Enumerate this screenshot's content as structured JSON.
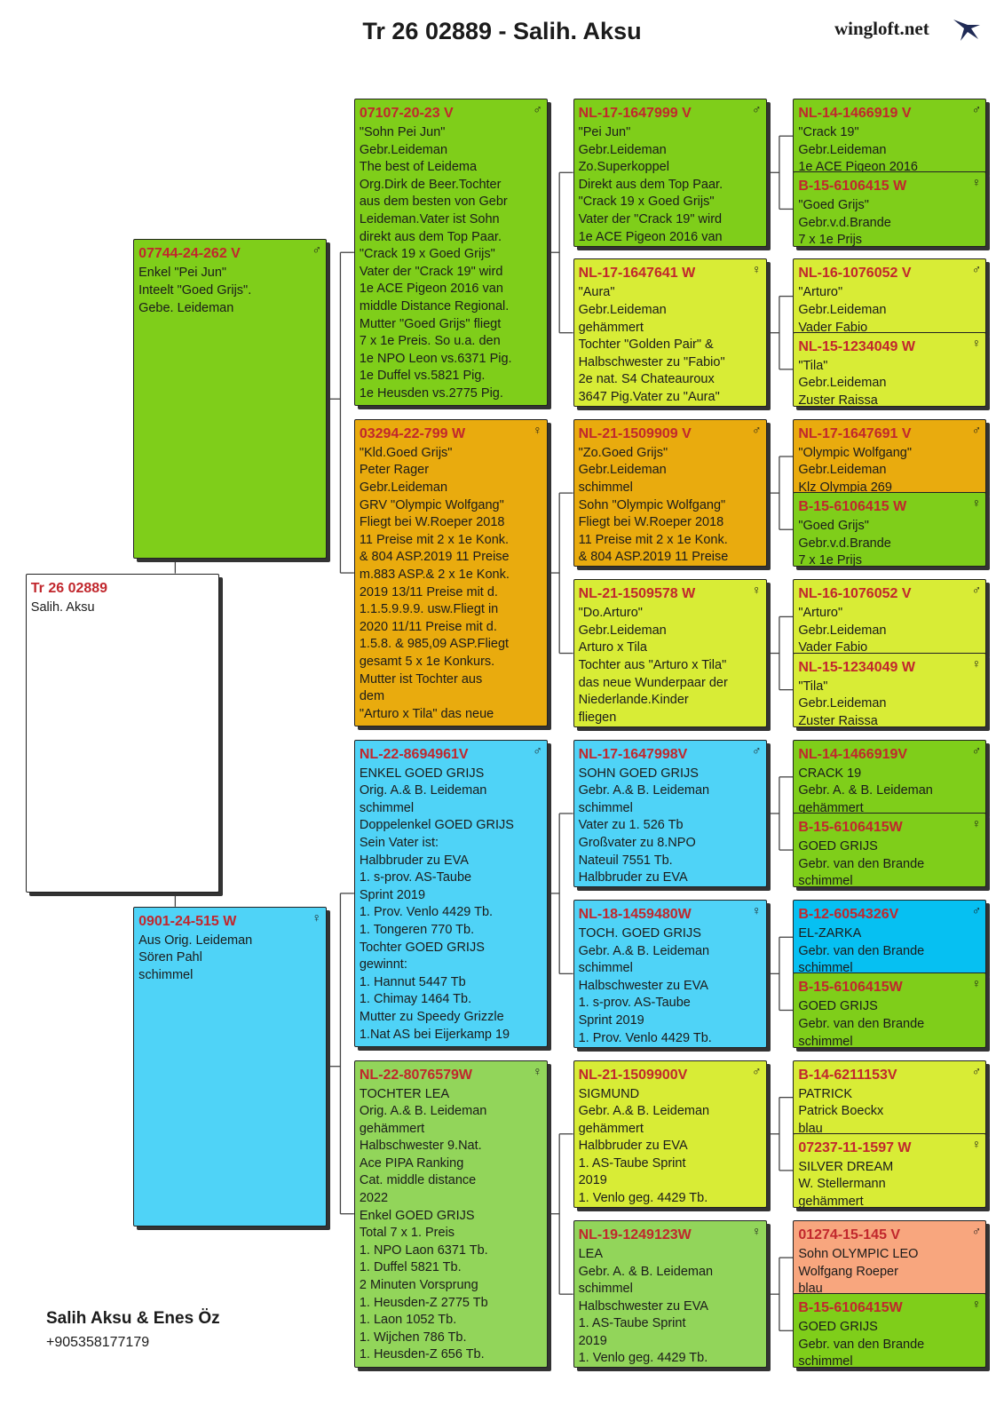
{
  "header": {
    "title": "Tr 26 02889 - Salih. Aksu",
    "brand": "wingloft.net"
  },
  "pedigree": {
    "nodes": [
      {
        "id": "Tr 26 02889",
        "sex": "",
        "lines": [
          "Salih. Aksu"
        ],
        "color": "#ffffff"
      },
      {
        "id": "07744-24-262 V",
        "sex": "♂",
        "lines": [
          "Enkel \"Pei Jun\"",
          "Inteelt \"Goed Grijs\".",
          "Gebe. Leideman"
        ],
        "color": "#7fce1a"
      },
      {
        "id": "0901-24-515 W",
        "sex": "♀",
        "lines": [
          "Aus Orig. Leideman",
          "Sören Pahl",
          "schimmel"
        ],
        "color": "#4fd3f7"
      },
      {
        "id": "07107-20-23 V",
        "sex": "♂",
        "lines": [
          "\"Sohn Pei Jun\"",
          "Gebr.Leideman",
          "The best of Leidema",
          "Org.Dirk de Beer.Tochter",
          "aus dem besten von Gebr",
          "Leideman.Vater ist Sohn",
          "direkt aus dem Top Paar.",
          "\"Crack 19 x Goed Grijs\"",
          "Vater der \"Crack 19\" wird",
          "1e ACE Pigeon 2016 van",
          "middle Distance Regional.",
          "Mutter \"Goed Grijs\" fliegt",
          "7 x 1e Preis. So u.a. den",
          "1e NPO Leon vs.6371 Pig.",
          "1e Duffel vs.5821 Pig.",
          "1e Heusden vs.2775 Pig."
        ],
        "color": "#7fce1a"
      },
      {
        "id": "03294-22-799 W",
        "sex": "♀",
        "lines": [
          "\"Kld.Goed Grijs\"",
          "Peter Rager",
          "Gebr.Leideman",
          "GRV \"Olympic Wolfgang\"",
          "Fliegt bei W.Roeper 2018",
          "11 Preise mit 2 x 1e Konk.",
          "& 804 ASP.2019 11 Preise",
          "m.883 ASP.& 2 x 1e Konk.",
          "2019 13/11 Preise mit d.",
          "1.1.5.9.9.9. usw.Fliegt in",
          "2020 11/11 Preise mit d.",
          "1.5.8. & 985,09 ASP.Fliegt",
          "gesamt 5 x 1e Konkurs.",
          "Mutter ist Tochter aus",
          "dem",
          "\"Arturo x Tila\" das neue"
        ],
        "color": "#e9ab0e"
      },
      {
        "id": "NL-22-8694961V",
        "sex": "♂",
        "lines": [
          "ENKEL GOED GRIJS",
          "Orig. A.& B. Leideman",
          "schimmel",
          "Doppelenkel GOED GRIJS",
          "Sein Vater ist:",
          "Halbbruder zu EVA",
          "1. s-prov. AS-Taube",
          "Sprint 2019",
          "1. Prov. Venlo 4429 Tb.",
          "1. Tongeren 770 Tb.",
          "Tochter GOED GRIJS",
          "gewinnt:",
          "1. Hannut 5447 Tb",
          "1. Chimay 1464 Tb.",
          "Mutter zu Speedy Grizzle",
          "1.Nat AS bei Eijerkamp 19"
        ],
        "color": "#4fd3f7"
      },
      {
        "id": "NL-22-8076579W",
        "sex": "♀",
        "lines": [
          "TOCHTER LEA",
          "Orig. A.& B. Leideman",
          "gehämmert",
          "Halbschwester 9.Nat.",
          "Ace PIPA Ranking",
          "Cat. middle distance",
          "2022",
          "Enkel GOED GRIJS",
          "Total 7 x 1. Preis",
          "1. NPO Laon 6371 Tb.",
          "1. Duffel 5821 Tb.",
          "2 Minuten Vorsprung",
          "1. Heusden-Z 2775 Tb",
          "1. Laon 1052 Tb.",
          "1. Wijchen 786 Tb.",
          "1. Heusden-Z 656 Tb."
        ],
        "color": "#92d55a"
      },
      {
        "id": "NL-17-1647999 V",
        "sex": "♂",
        "lines": [
          "\"Pei Jun\"",
          "Gebr.Leideman",
          "Zo.Superkoppel",
          "Direkt aus dem Top Paar.",
          "\"Crack 19 x Goed Grijs\"",
          "Vater der \"Crack 19\" wird",
          "1e ACE Pigeon 2016 van"
        ],
        "color": "#7fce1a"
      },
      {
        "id": "NL-17-1647641 W",
        "sex": "♀",
        "lines": [
          "\"Aura\"",
          "Gebr.Leideman",
          "gehämmert",
          "Tochter \"Golden Pair\" &",
          "Halbschwester zu \"Fabio\"",
          "2e nat. S4 Chateauroux",
          "3647 Pig.Vater zu \"Aura\""
        ],
        "color": "#d8ec36"
      },
      {
        "id": "NL-21-1509909 V",
        "sex": "♂",
        "lines": [
          "\"Zo.Goed Grijs\"",
          "Gebr.Leideman",
          "schimmel",
          "Sohn \"Olympic Wolfgang\"",
          "Fliegt bei W.Roeper 2018",
          "11 Preise mit 2 x 1e Konk.",
          "& 804 ASP.2019 11 Preise"
        ],
        "color": "#e9ab0e"
      },
      {
        "id": "NL-21-1509578 W",
        "sex": "♀",
        "lines": [
          "\"Do.Arturo\"",
          "Gebr.Leideman",
          "Arturo x Tila",
          "Tochter aus \"Arturo x Tila\"",
          "das neue Wunderpaar der",
          "Niederlande.Kinder",
          "fliegen"
        ],
        "color": "#d8ec36"
      },
      {
        "id": "NL-17-1647998V",
        "sex": "♂",
        "lines": [
          "SOHN GOED GRIJS",
          "Gebr. A.& B. Leideman",
          "schimmel",
          "Vater zu 1. 526 Tb",
          "Großvater zu 8.NPO",
          "Nateuil 7551 Tb.",
          "Halbbruder zu EVA"
        ],
        "color": "#4fd3f7"
      },
      {
        "id": "NL-18-1459480W",
        "sex": "♀",
        "lines": [
          "TOCH. GOED GRIJS",
          "Gebr. A.& B. Leideman",
          "schimmel",
          "Halbschwester zu EVA",
          "1. s-prov. AS-Taube",
          "Sprint 2019",
          "1. Prov. Venlo 4429 Tb."
        ],
        "color": "#4fd3f7"
      },
      {
        "id": "NL-21-1509900V",
        "sex": "♂",
        "lines": [
          "SIGMUND",
          "Gebr. A.& B. Leideman",
          "gehämmert",
          "Halbbruder zu EVA",
          "1. AS-Taube Sprint",
          "2019",
          "1. Venlo geg. 4429 Tb."
        ],
        "color": "#d8ec36"
      },
      {
        "id": "NL-19-1249123W",
        "sex": "♀",
        "lines": [
          "LEA",
          "Gebr. A. & B. Leideman",
          "schimmel",
          "Halbschwester zu EVA",
          "1. AS-Taube Sprint",
          "2019",
          "1. Venlo geg. 4429 Tb."
        ],
        "color": "#92d55a"
      },
      {
        "id": "NL-14-1466919 V",
        "sex": "♂",
        "lines": [
          "\"Crack 19\"",
          "Gebr.Leideman",
          "1e ACE Pigeon 2016"
        ],
        "color": "#7fce1a"
      },
      {
        "id": "B-15-6106415 W",
        "sex": "♀",
        "lines": [
          "\"Goed Grijs\"",
          "Gebr.v.d.Brande",
          "7 x 1e Prijs"
        ],
        "color": "#7fce1a"
      },
      {
        "id": "NL-16-1076052 V",
        "sex": "♂",
        "lines": [
          "\"Arturo\"",
          "Gebr.Leideman",
          "Vader Fabio"
        ],
        "color": "#d8ec36"
      },
      {
        "id": "NL-15-1234049 W",
        "sex": "♀",
        "lines": [
          "\"Tila\"",
          "Gebr.Leideman",
          "Zuster Raissa"
        ],
        "color": "#d8ec36"
      },
      {
        "id": "NL-17-1647691 V",
        "sex": "♂",
        "lines": [
          "\"Olympic Wolfgang\"",
          "Gebr.Leideman",
          "Klz Olympia 269"
        ],
        "color": "#e9ab0e"
      },
      {
        "id": "B-15-6106415 W",
        "sex": "♀",
        "lines": [
          "\"Goed Grijs\"",
          "Gebr.v.d.Brande",
          "7 x 1e Prijs"
        ],
        "color": "#7fce1a"
      },
      {
        "id": "NL-16-1076052 V",
        "sex": "♂",
        "lines": [
          "\"Arturo\"",
          "Gebr.Leideman",
          "Vader Fabio"
        ],
        "color": "#d8ec36"
      },
      {
        "id": "NL-15-1234049 W",
        "sex": "♀",
        "lines": [
          "\"Tila\"",
          "Gebr.Leideman",
          "Zuster Raissa"
        ],
        "color": "#d8ec36"
      },
      {
        "id": "NL-14-1466919V",
        "sex": "♂",
        "lines": [
          "CRACK 19",
          "Gebr. A. & B. Leideman",
          "gehämmert"
        ],
        "color": "#7fce1a"
      },
      {
        "id": "B-15-6106415W",
        "sex": "♀",
        "lines": [
          "GOED GRIJS",
          "Gebr. van den Brande",
          "schimmel"
        ],
        "color": "#7fce1a"
      },
      {
        "id": "B-12-6054326V",
        "sex": "♂",
        "lines": [
          "EL-ZARKA",
          "Gebr. van den Brande",
          "schimmel"
        ],
        "color": "#06c0f2"
      },
      {
        "id": "B-15-6106415W",
        "sex": "♀",
        "lines": [
          "GOED GRIJS",
          "Gebr. van den Brande",
          "schimmel"
        ],
        "color": "#7fce1a"
      },
      {
        "id": "B-14-6211153V",
        "sex": "♂",
        "lines": [
          "PATRICK",
          "Patrick Boeckx",
          "blau"
        ],
        "color": "#d8ec36"
      },
      {
        "id": "07237-11-1597 W",
        "sex": "♀",
        "lines": [
          "SILVER DREAM",
          "W. Stellermann",
          "gehämmert"
        ],
        "color": "#d8ec36"
      },
      {
        "id": "01274-15-145 V",
        "sex": "♂",
        "lines": [
          "Sohn OLYMPIC LEO",
          "Wolfgang Roeper",
          "blau"
        ],
        "color": "#f8a67e"
      },
      {
        "id": "B-15-6106415W",
        "sex": "♀",
        "lines": [
          "GOED GRIJS",
          "Gebr. van den Brande",
          "schimmel"
        ],
        "color": "#7fce1a"
      }
    ]
  },
  "footer": {
    "name": "Salih Aksu & Enes Öz",
    "phone": "+905358177179"
  }
}
